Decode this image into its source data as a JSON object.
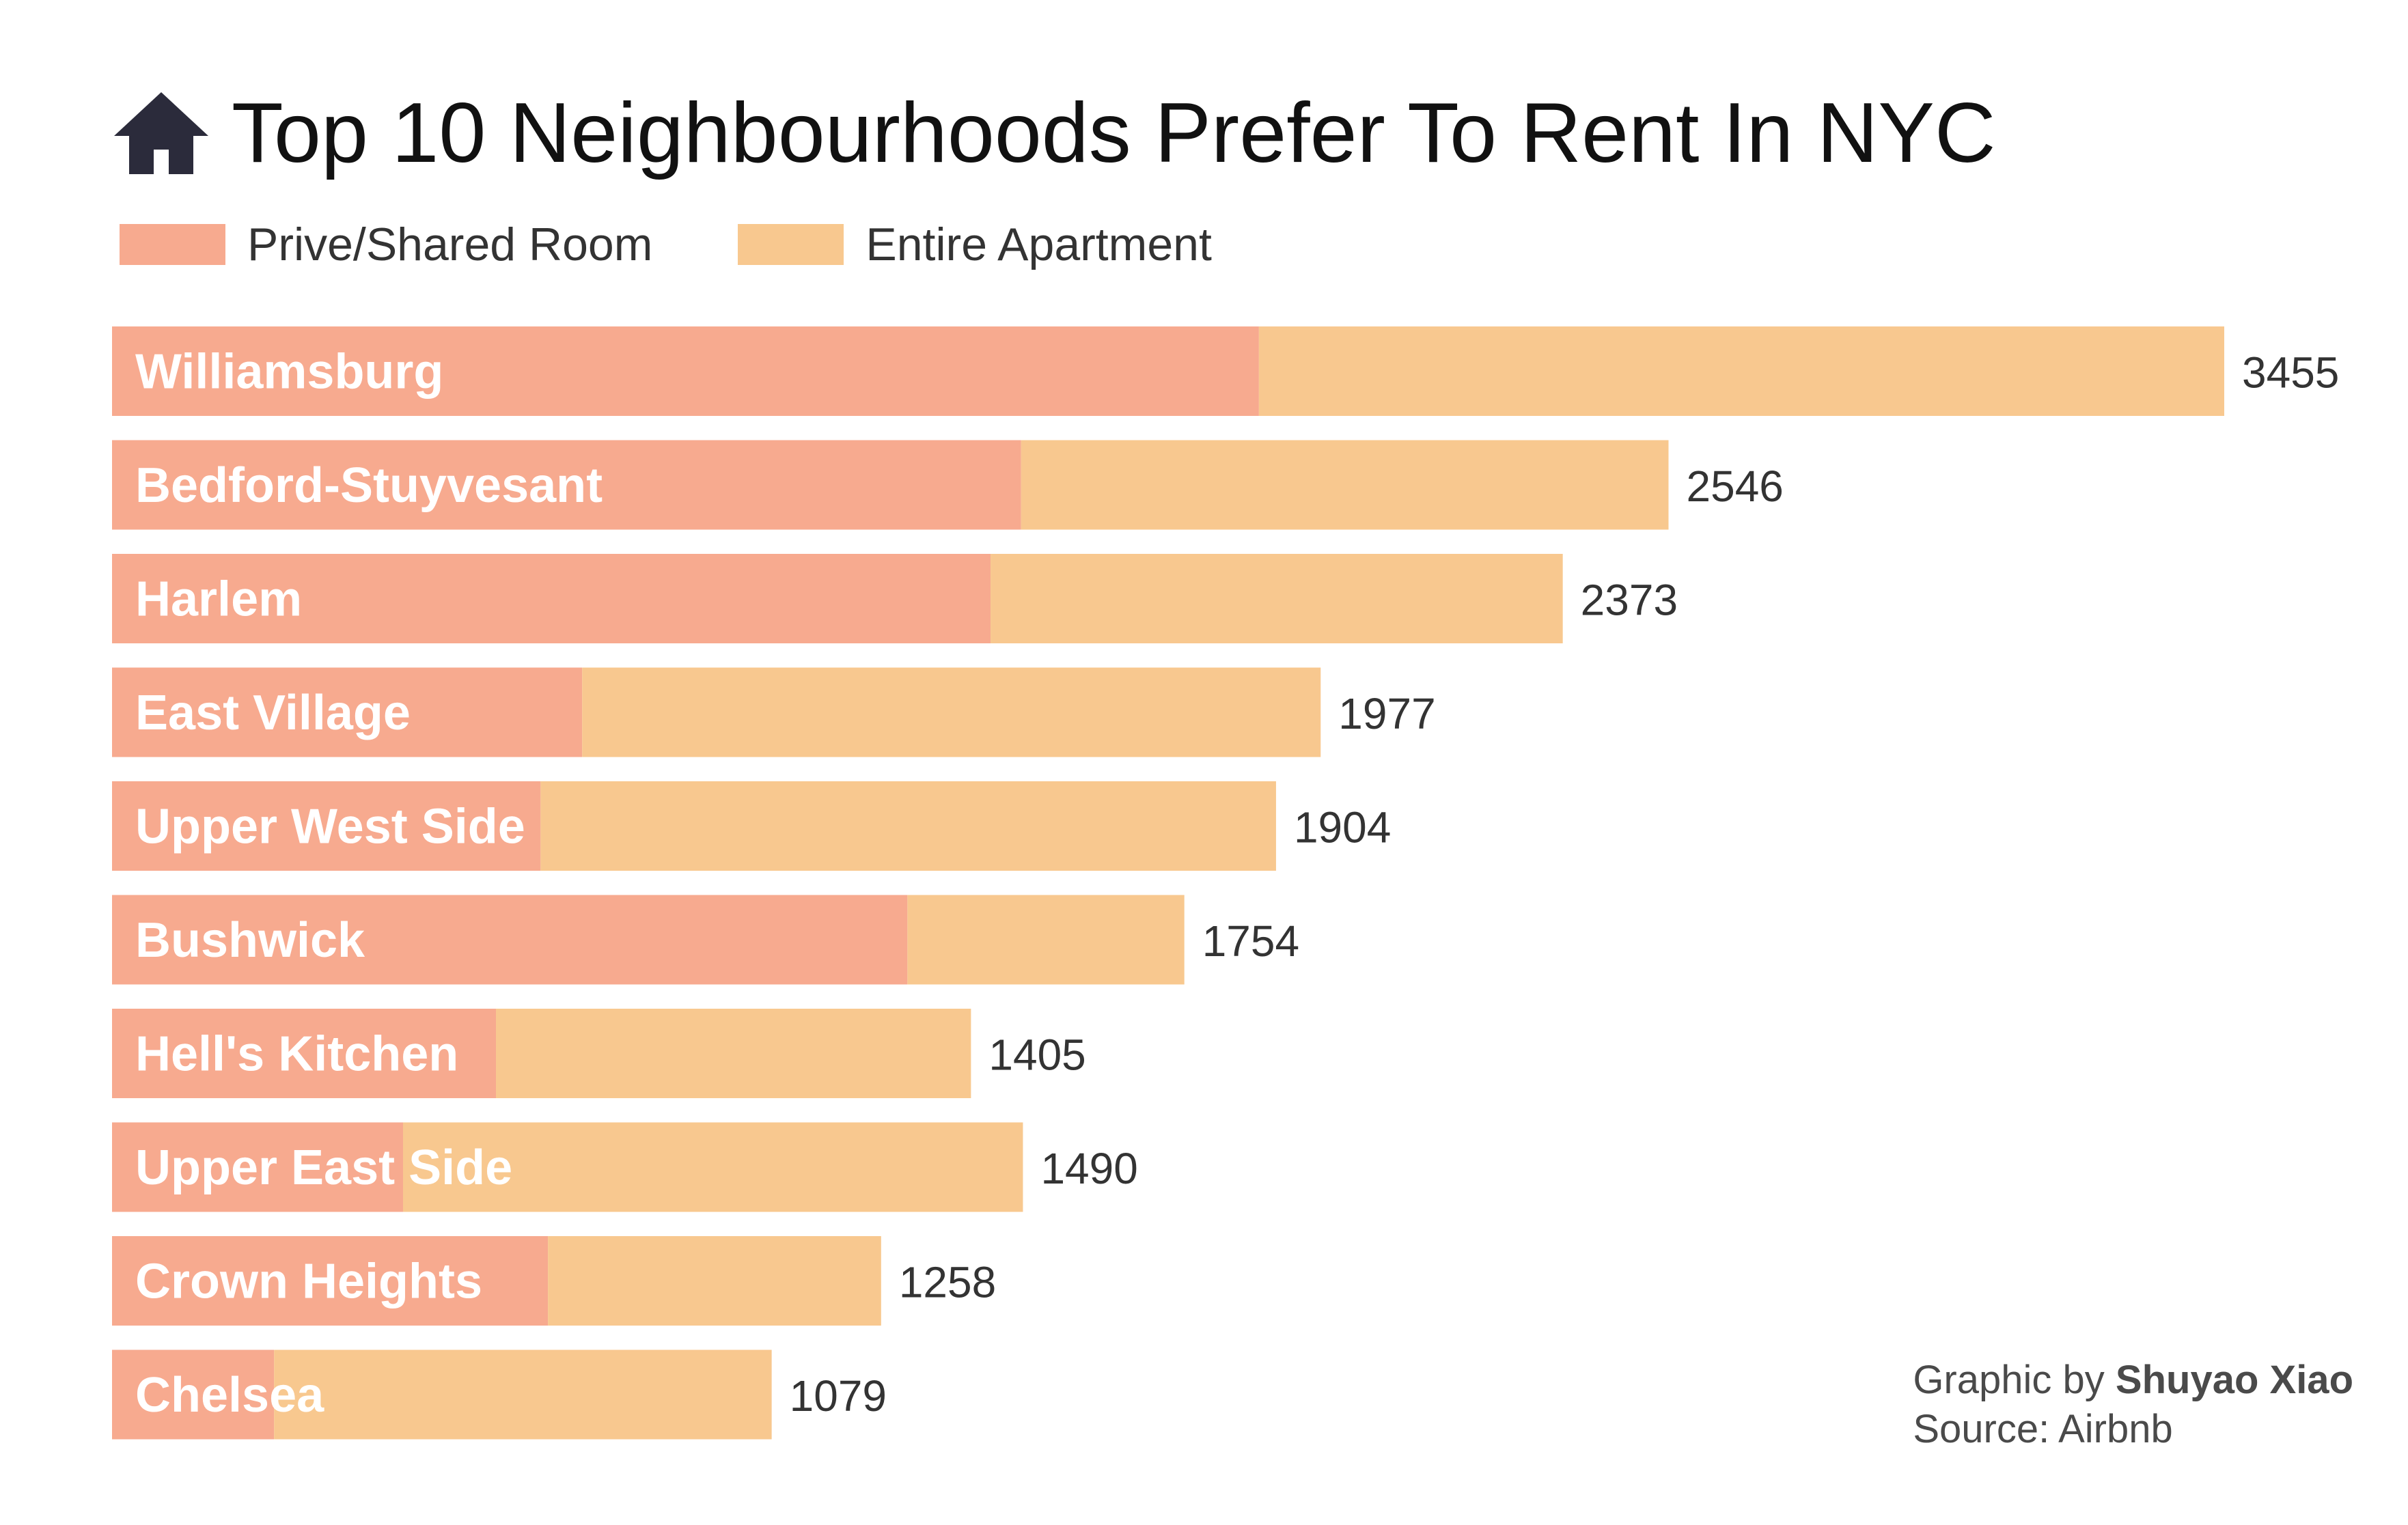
{
  "title": "Top 10 Neighbourhoods Prefer To Rent In NYC",
  "title_icon": "house-icon",
  "caption": {
    "graphic_prefix": "Graphic by",
    "author": "Shuyao Xiao",
    "source": "Source: Airbnb"
  },
  "colors": {
    "private_shared": "#F7AA8F",
    "entire_apartment": "#F8C88F",
    "title_text": "#111111",
    "icon": "#2B2B3B"
  },
  "chart_data": {
    "type": "bar",
    "orientation": "horizontal",
    "stacked": true,
    "categories": [
      "Williamsburg",
      "Bedford-Stuyvesant",
      "Harlem",
      "East Village",
      "Upper West Side",
      "Bushwick",
      "Hell's Kitchen",
      "Upper East Side",
      "Crown Heights",
      "Chelsea"
    ],
    "series": [
      {
        "name": "Prive/Shared Room",
        "values": [
          1876,
          1487,
          1437,
          769,
          701,
          1301,
          628,
          476,
          713,
          265
        ]
      },
      {
        "name": "Entire Apartment",
        "values": [
          1579,
          1059,
          936,
          1208,
          1203,
          453,
          777,
          1014,
          545,
          814
        ]
      }
    ],
    "totals": [
      "3455",
      "2546",
      "2373",
      "1977",
      "1904",
      "1754",
      "1405",
      "1490",
      "1258",
      "1079"
    ],
    "xlim": [
      0,
      3455
    ],
    "grid": false,
    "legend_position": "top-left",
    "legend": [
      "Prive/Shared Room",
      "Entire Apartment"
    ]
  }
}
